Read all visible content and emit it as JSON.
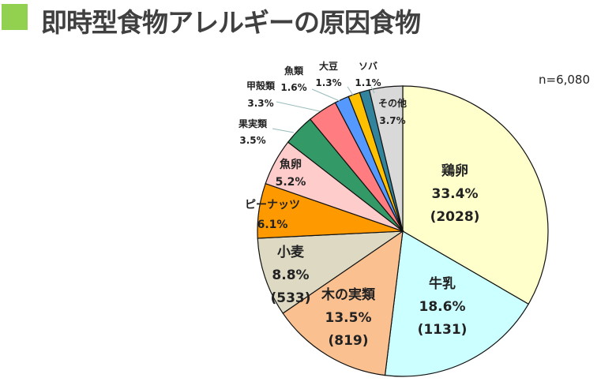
{
  "header": {
    "title": "即時型食物アレルギーの原因食物",
    "accent_color": "#92d050"
  },
  "chart_data": {
    "type": "pie",
    "title": "即時型食物アレルギーの原因食物",
    "note": "n=6,080",
    "start": "12 o'clock, clockwise",
    "slices": [
      {
        "label": "鶏卵",
        "percent": 33.4,
        "count": 2028,
        "pct_text": "33.4%",
        "count_text": "(2028)",
        "color": "#ffffcc"
      },
      {
        "label": "牛乳",
        "percent": 18.6,
        "count": 1131,
        "pct_text": "18.6%",
        "count_text": "(1131)",
        "color": "#ccffff"
      },
      {
        "label": "木の実類",
        "percent": 13.5,
        "count": 819,
        "pct_text": "13.5%",
        "count_text": "(819)",
        "color": "#fac090"
      },
      {
        "label": "小麦",
        "percent": 8.8,
        "count": 533,
        "pct_text": "8.8%",
        "count_text": "(533)",
        "color": "#ddd9c3"
      },
      {
        "label": "ピーナッツ",
        "percent": 6.1,
        "pct_text": "6.1%",
        "color": "#ff9900"
      },
      {
        "label": "魚卵",
        "percent": 5.2,
        "pct_text": "5.2%",
        "color": "#ffcccc"
      },
      {
        "label": "果実類",
        "percent": 3.5,
        "pct_text": "3.5%",
        "color": "#339966"
      },
      {
        "label": "甲殻類",
        "percent": 3.3,
        "pct_text": "3.3%",
        "color": "#ff7c80"
      },
      {
        "label": "魚類",
        "percent": 1.6,
        "pct_text": "1.6%",
        "color": "#5599ff"
      },
      {
        "label": "大豆",
        "percent": 1.3,
        "pct_text": "1.3%",
        "color": "#ffc000"
      },
      {
        "label": "ソバ",
        "percent": 1.1,
        "pct_text": "1.1%",
        "color": "#31849b"
      },
      {
        "label": "その他",
        "percent": 3.7,
        "pct_text": "3.7%",
        "color": "#d9d9d9"
      }
    ]
  }
}
